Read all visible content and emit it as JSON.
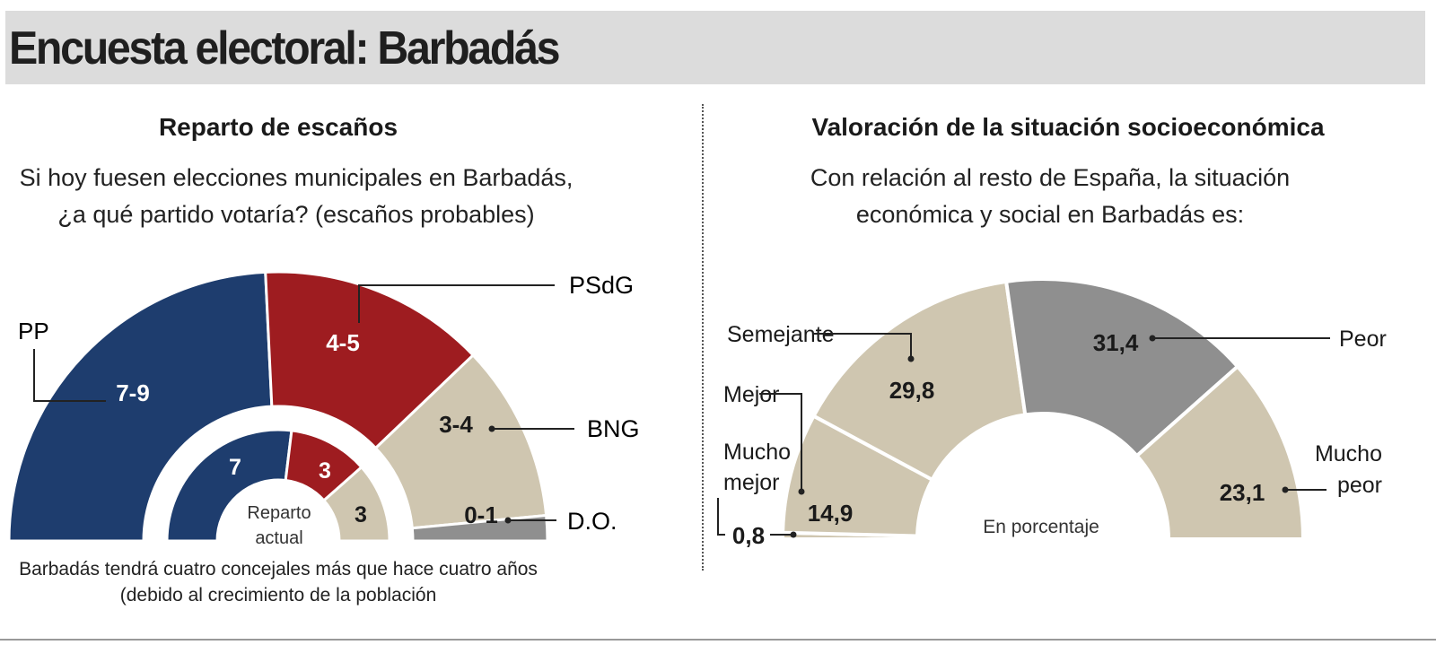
{
  "title": "Encuesta electoral: Barbadás",
  "left": {
    "section_title": "Reparto de escaños",
    "question": "Si hoy fuesen elecciones municipales en Barbadás, ¿a qué partido votaría? (escaños probables)",
    "inner_label": "Reparto actual",
    "note_line1": "Barbadás tendrá cuatro concejales más que hace cuatro años",
    "note_line2": "(debido al crecimiento de la población"
  },
  "right": {
    "section_title": "Valoración de la situación socioeconómica",
    "question": "Con relación al resto de España, la situación económica y social en Barbadás es:",
    "center_label": "En porcentaje"
  },
  "chart_data": [
    {
      "type": "pie",
      "subtype": "half-donut",
      "name": "Reparto de escaños (escaños probables)",
      "series": [
        {
          "name": "PP",
          "value_label": "7-9",
          "values": [
            7,
            9
          ],
          "color": "#1e3d6e"
        },
        {
          "name": "PSdG",
          "value_label": "4-5",
          "values": [
            4,
            5
          ],
          "color": "#9e1c20"
        },
        {
          "name": "BNG",
          "value_label": "3-4",
          "values": [
            3,
            4
          ],
          "color": "#cfc6b0"
        },
        {
          "name": "D.O.",
          "value_label": "0-1",
          "values": [
            0,
            1
          ],
          "color": "#8f8f8f"
        }
      ]
    },
    {
      "type": "pie",
      "subtype": "half-donut",
      "name": "Reparto actual",
      "series": [
        {
          "name": "PP",
          "value_label": "7",
          "value": 7,
          "color": "#1e3d6e"
        },
        {
          "name": "PSdG",
          "value_label": "3",
          "value": 3,
          "color": "#9e1c20"
        },
        {
          "name": "BNG",
          "value_label": "3",
          "value": 3,
          "color": "#cfc6b0"
        }
      ]
    },
    {
      "type": "pie",
      "subtype": "half-donut",
      "name": "Valoración de la situación socioeconómica (En porcentaje)",
      "series": [
        {
          "name": "Mucho mejor",
          "value_label": "0,8",
          "value": 0.8,
          "color": "#cfc6b0"
        },
        {
          "name": "Mejor",
          "value_label": "14,9",
          "value": 14.9,
          "color": "#cfc6b0"
        },
        {
          "name": "Semejante",
          "value_label": "29,8",
          "value": 29.8,
          "color": "#cfc6b0"
        },
        {
          "name": "Peor",
          "value_label": "31,4",
          "value": 31.4,
          "color": "#8f8f8f"
        },
        {
          "name": "Mucho peor",
          "value_label": "23,1",
          "value": 23.1,
          "color": "#cfc6b0"
        }
      ]
    }
  ]
}
